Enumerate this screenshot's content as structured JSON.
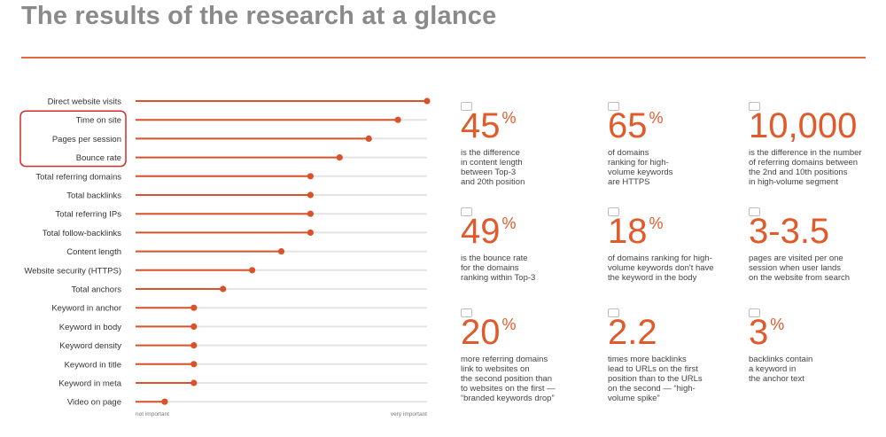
{
  "page": {
    "title": "The results of the research at a glance"
  },
  "chart_data": {
    "type": "lollipop",
    "orientation": "horizontal",
    "categories": [
      "Direct website visits",
      "Time on site",
      "Pages per session",
      "Bounce rate",
      "Total referring domains",
      "Total backlinks",
      "Total referring IPs",
      "Total follow-backlinks",
      "Content length",
      "Website security (HTTPS)",
      "Total anchors",
      "Keyword in anchor",
      "Keyword in body",
      "Keyword density",
      "Keyword in title",
      "Keyword in meta",
      "Video on page"
    ],
    "values": [
      100,
      90,
      80,
      70,
      60,
      60,
      60,
      60,
      50,
      40,
      30,
      20,
      20,
      20,
      20,
      20,
      10
    ],
    "xlim": [
      0,
      100
    ],
    "axis_min_label": "not important",
    "axis_max_label": "very important",
    "highlighted": [
      "Time on site",
      "Pages per session",
      "Bounce rate"
    ],
    "colors": {
      "accent": "#d9532a",
      "track": "#e4e4e4",
      "highlight": "#d22b2b"
    }
  },
  "stats": [
    {
      "icon": "document-icon",
      "value": "45",
      "symbol": "%",
      "description": "is the difference\nin content length\nbetween Top-3\nand 20th position"
    },
    {
      "icon": "lock-icon",
      "value": "65",
      "symbol": "%",
      "description": "of domains\nranking for high-\nvolume keywords\nare HTTPS"
    },
    {
      "icon": "server-icon",
      "value": "10,000",
      "symbol": "",
      "description": "is the difference in the number\nof referring domains between\nthe 2nd and 10th positions\nin high-volume segment"
    },
    {
      "icon": "return-arrow-icon",
      "value": "49",
      "symbol": "%",
      "description": "is the bounce rate\nfor the domains\nranking within Top-3"
    },
    {
      "icon": "key-icon",
      "value": "18",
      "symbol": "%",
      "description": "of domains ranking for high-\nvolume keywords don't have\nthe keyword in the body"
    },
    {
      "icon": "eye-icon",
      "value": "3-3.5",
      "symbol": "",
      "description": "pages are visited per one\nsession when user lands\non the website from search"
    },
    {
      "icon": "link-icon",
      "value": "20",
      "symbol": "%",
      "description": "more referring domains\nlink to websites on\nthe second position than\nto websites on the first —\n“branded keywords drop”"
    },
    {
      "icon": "browser-icon",
      "value": "2.2",
      "symbol": "",
      "description": "times more backlinks\nlead to URLs on the first\nposition than to the URLs\non the second — “high-\nvolume spike”"
    },
    {
      "icon": "pointer-icon",
      "value": "3",
      "symbol": "%",
      "description": "backlinks contain\na keyword in\nthe anchor text"
    }
  ]
}
